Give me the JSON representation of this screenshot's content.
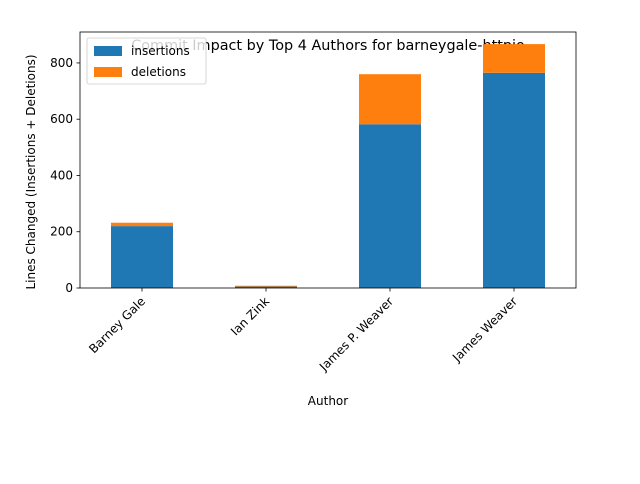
{
  "chart_data": {
    "type": "bar",
    "stacked": true,
    "title": "Commit Impact by Top 4 Authors for barneygale-httpio",
    "xlabel": "Author",
    "ylabel": "Lines Changed (Insertions + Deletions)",
    "categories": [
      "Barney Gale",
      "Ian Zink",
      "James P. Weaver",
      "James Weaver"
    ],
    "series": [
      {
        "name": "insertions",
        "color": "#1f77b4",
        "values": [
          220,
          5,
          582,
          765
        ]
      },
      {
        "name": "deletions",
        "color": "#ff7f0e",
        "values": [
          12,
          3,
          178,
          102
        ]
      }
    ],
    "ylim": [
      0,
      910
    ],
    "yticks": [
      0,
      200,
      400,
      600,
      800
    ],
    "grid": false,
    "legend_position": "top-left"
  }
}
